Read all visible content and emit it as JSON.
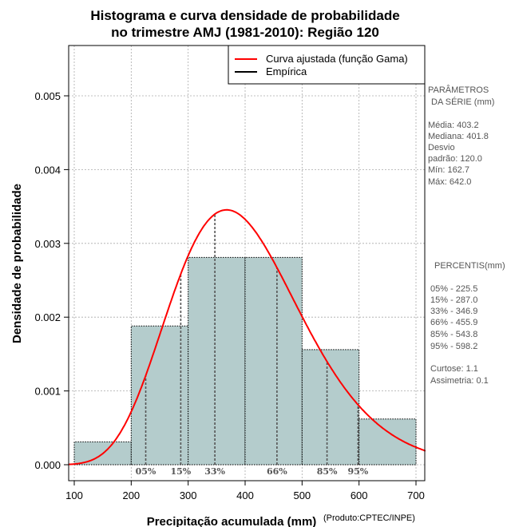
{
  "chart_data": {
    "type": "bar",
    "title_lines": [
      "Histograma e curva densidade de probabilidade",
      "no trimestre AMJ (1981-2010): Região 120"
    ],
    "xlabel": "Precipitação acumulada (mm)",
    "ylabel": "Densidade de probabilidade",
    "credit": "(Produto:CPTEC/INPE)",
    "xlim": [
      90,
      720
    ],
    "ylim": [
      0,
      0.0057
    ],
    "x_ticks": [
      100,
      200,
      300,
      400,
      500,
      600,
      700
    ],
    "y_ticks": [
      0.0,
      0.001,
      0.002,
      0.003,
      0.004,
      0.005
    ],
    "y_tick_labels": [
      "0.000",
      "0.001",
      "0.002",
      "0.003",
      "0.004",
      "0.005"
    ],
    "grid": true,
    "bins": [
      {
        "start": 100,
        "end": 200,
        "density": 0.00031
      },
      {
        "start": 200,
        "end": 300,
        "density": 0.00188
      },
      {
        "start": 300,
        "end": 400,
        "density": 0.00281
      },
      {
        "start": 400,
        "end": 500,
        "density": 0.00281
      },
      {
        "start": 500,
        "end": 600,
        "density": 0.00156
      },
      {
        "start": 600,
        "end": 700,
        "density": 0.00062
      }
    ],
    "gamma_fit": {
      "mean": 403.2,
      "sd": 120.0
    },
    "percentile_marks": [
      {
        "label": "05%",
        "value": 225.5
      },
      {
        "label": "15%",
        "value": 287.0
      },
      {
        "label": "33%",
        "value": 346.9
      },
      {
        "label": "66%",
        "value": 455.9
      },
      {
        "label": "85%",
        "value": 543.8
      },
      {
        "label": "95%",
        "value": 598.2
      }
    ],
    "legend": {
      "position": "top-right",
      "entries": [
        {
          "label": "Curva ajustada (função Gama)",
          "color": "#ff0000"
        },
        {
          "label": "Empírica",
          "color": "#000000"
        }
      ]
    },
    "colors": {
      "bar_fill": "#b4cccc",
      "curve": "#ff0000",
      "grid": "#aaaaaa",
      "side_text": "#555555"
    }
  },
  "side_panel": {
    "params_title": [
      "PARÂMETROS",
      "DA SÉRIE (mm)"
    ],
    "params": [
      "Média:  403.2",
      "Mediana:  401.8",
      "Desvio",
      "padrão:  120.0",
      "Mín:  162.7",
      "Máx:  642.0"
    ],
    "percentis_title": "PERCENTIS(mm)",
    "percentis": [
      "05% -  225.5",
      "15% -  287.0",
      "33% -  346.9",
      "66% -  455.9",
      "85% -  543.8",
      "95% -  598.2"
    ],
    "stats": [
      "Curtose:  1.1",
      "Assimetria:  0.1"
    ]
  }
}
